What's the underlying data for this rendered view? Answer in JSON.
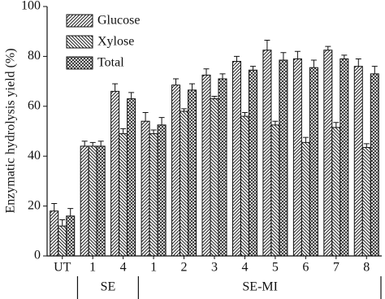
{
  "chart_data": {
    "type": "bar",
    "y_label": "Enzymatic hydrolysis yield (%)",
    "categories": [
      "UT",
      "1",
      "4",
      "1",
      "2",
      "3",
      "4",
      "5",
      "6",
      "7",
      "8"
    ],
    "groups": [
      {
        "label": "SE",
        "from": 1,
        "to": 2
      },
      {
        "label": "SE-MI",
        "from": 3,
        "to": 10
      }
    ],
    "series": [
      {
        "name": "Glucose",
        "color": "#111111",
        "hatch": "forward",
        "values": [
          18,
          44,
          66,
          54,
          68.5,
          72.5,
          78,
          82.5,
          79,
          82.5,
          76
        ],
        "errors": [
          3,
          2,
          3,
          3.5,
          2.5,
          2.5,
          2,
          4,
          3,
          1.5,
          3
        ]
      },
      {
        "name": "Xylose",
        "color": "#111111",
        "hatch": "back",
        "values": [
          12,
          44,
          49,
          49,
          58,
          63,
          56,
          52.5,
          45.5,
          51.5,
          43.5
        ],
        "errors": [
          2.5,
          1.5,
          2,
          1.5,
          1,
          1,
          1.5,
          1.5,
          2,
          2,
          1.5
        ]
      },
      {
        "name": "Total",
        "color": "#111111",
        "hatch": "cross",
        "values": [
          16,
          44,
          63,
          52.5,
          66.5,
          71,
          74.5,
          78.5,
          75.5,
          79,
          73
        ],
        "errors": [
          3,
          2,
          2.5,
          3,
          2.5,
          2,
          1.5,
          3,
          3,
          1.5,
          3
        ]
      }
    ],
    "ylim": [
      0,
      100
    ],
    "yticks": [
      0,
      20,
      40,
      60,
      80,
      100
    ],
    "legend": "top-left"
  }
}
